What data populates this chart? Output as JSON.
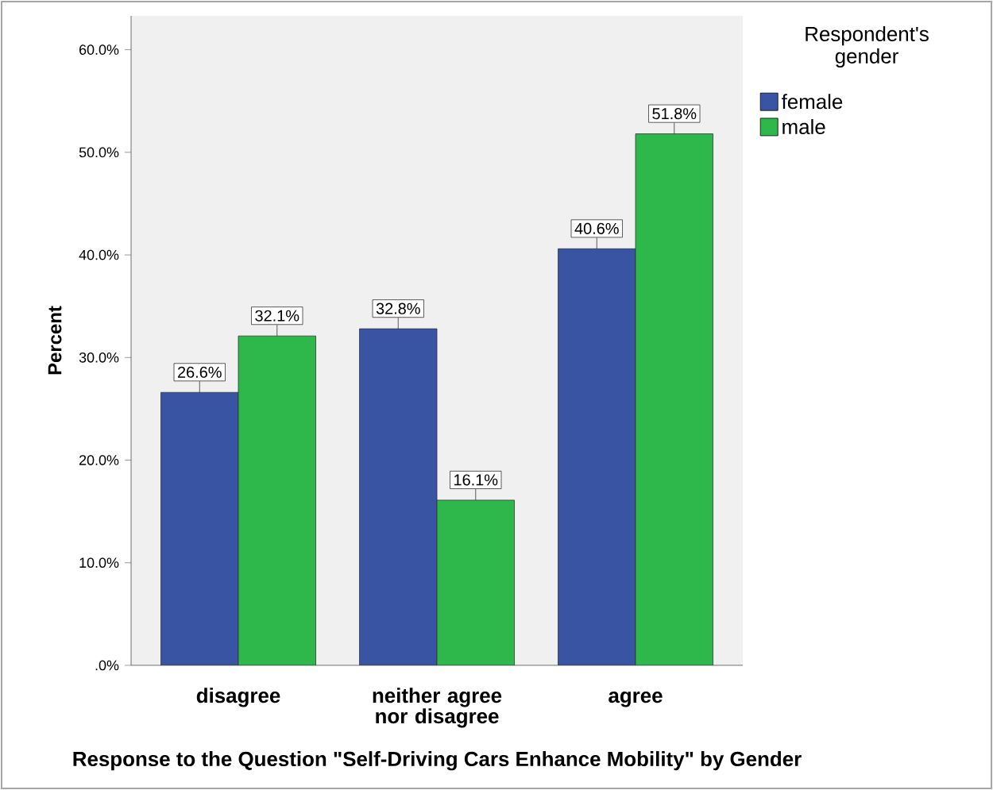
{
  "chart_data": {
    "type": "bar",
    "categories": [
      "disagree",
      "neither agree nor disagree",
      "agree"
    ],
    "series": [
      {
        "name": "female",
        "color": "#3a54a4",
        "values": [
          26.6,
          32.8,
          40.6
        ],
        "value_labels": [
          "26.6%",
          "32.8%",
          "40.6%"
        ]
      },
      {
        "name": "male",
        "color": "#2eb84b",
        "values": [
          32.1,
          16.1,
          51.8
        ],
        "value_labels": [
          "32.1%",
          "16.1%",
          "51.8%"
        ]
      }
    ],
    "xlabel": "Response to the Question \"Self-Driving Cars Enhance Mobility\" by Gender",
    "ylabel": "Percent",
    "legend_title": "Respondent's gender",
    "legend": "right",
    "grid": false,
    "ylim": [
      0,
      63.3
    ],
    "yticks": [
      {
        "value": 0,
        "label": ".0%"
      },
      {
        "value": 10,
        "label": "10.0%"
      },
      {
        "value": 20,
        "label": "20.0%"
      },
      {
        "value": 30,
        "label": "30.0%"
      },
      {
        "value": 40,
        "label": "40.0%"
      },
      {
        "value": 50,
        "label": "50.0%"
      },
      {
        "value": 60,
        "label": "60.0%"
      }
    ]
  }
}
